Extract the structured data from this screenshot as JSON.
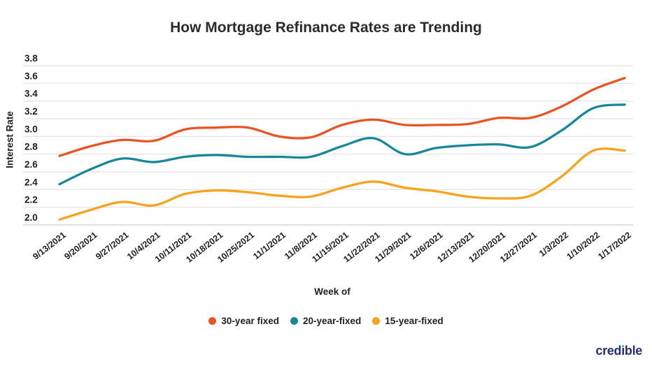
{
  "page": {
    "background": "#ffffff"
  },
  "chart_data": {
    "type": "line",
    "title": "How Mortgage Refinance Rates are Trending",
    "xlabel": "Week of",
    "ylabel": "Interest Rate",
    "ylim": [
      2.0,
      3.8
    ],
    "grid": true,
    "legend_position": "bottom",
    "y_ticks": [
      "3.8",
      "3.6",
      "3.4",
      "3.2",
      "3.0",
      "2.8",
      "2.6",
      "2.4",
      "2.2",
      "2.0"
    ],
    "categories": [
      "9/13/2021",
      "9/20/2021",
      "9/27/2021",
      "10/4/2021",
      "10/11/2021",
      "10/18/2021",
      "10/25/2021",
      "11/1/2021",
      "11/8/2021",
      "11/15/2021",
      "11/22/2021",
      "11/29/2021",
      "12/6/2021",
      "12/13/2021",
      "12/20/2021",
      "12/27/2021",
      "1/3/2022",
      "1/10/2022",
      "1/17/2022"
    ],
    "series": [
      {
        "name": "30-year fixed",
        "color": "#E85424",
        "values": [
          2.78,
          2.89,
          2.96,
          2.95,
          3.08,
          3.1,
          3.1,
          3.0,
          2.99,
          3.13,
          3.19,
          3.13,
          3.13,
          3.14,
          3.21,
          3.21,
          3.34,
          3.53,
          3.66
        ]
      },
      {
        "name": "20-year-fixed",
        "color": "#17879B",
        "values": [
          2.46,
          2.63,
          2.75,
          2.71,
          2.77,
          2.79,
          2.77,
          2.77,
          2.77,
          2.89,
          2.98,
          2.8,
          2.87,
          2.9,
          2.91,
          2.88,
          3.07,
          3.32,
          3.36
        ]
      },
      {
        "name": "15-year-fixed",
        "color": "#F9A21B",
        "values": [
          2.06,
          2.17,
          2.26,
          2.22,
          2.35,
          2.39,
          2.37,
          2.33,
          2.32,
          2.42,
          2.49,
          2.42,
          2.38,
          2.32,
          2.3,
          2.33,
          2.55,
          2.84,
          2.84
        ]
      }
    ]
  },
  "branding": {
    "logo_full": "credible",
    "logo_pre": "cred",
    "logo_i": "ı",
    "logo_post": "ble",
    "logo_color": "#252E77",
    "logo_dot_color": "#2FB39F"
  },
  "colors": {
    "gridline": "#E0E0E0",
    "baseline": "#CDCDCD",
    "tick_text": "#1f1f1f",
    "title_text": "#2b2b2b"
  }
}
